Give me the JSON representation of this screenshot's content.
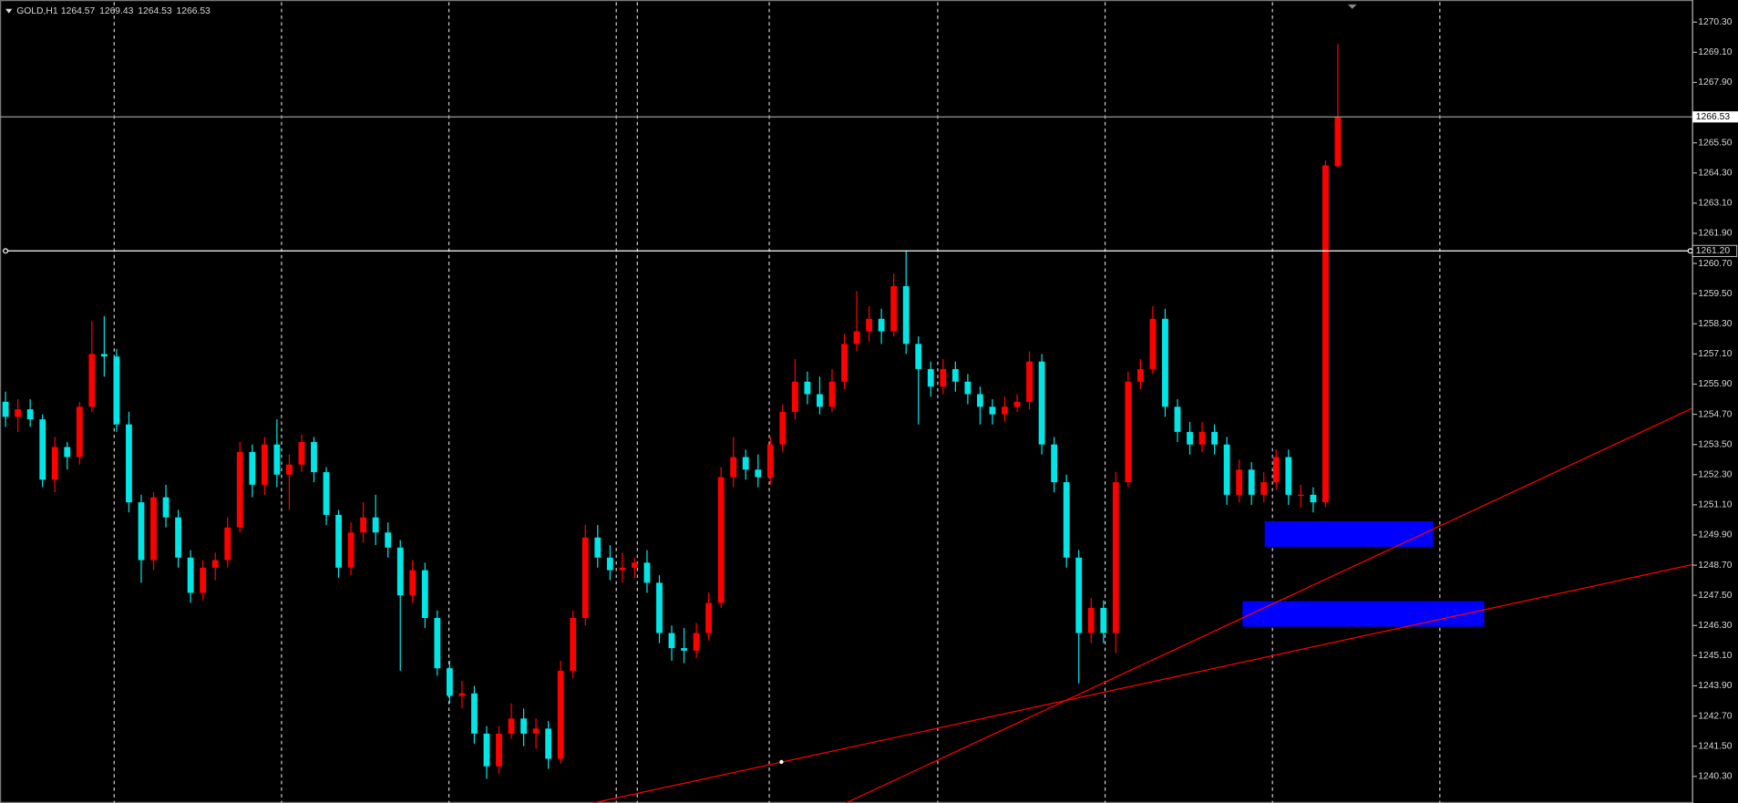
{
  "chart_data": {
    "type": "candlestick",
    "title": "GOLD,H1",
    "up_color": "#ff0000",
    "down_color": "#00e5e5",
    "ylim": [
      1239.24,
      1271.18
    ],
    "yticks": [
      {
        "value": 1270.3,
        "label": "1270.30"
      },
      {
        "value": 1269.1,
        "label": "1269.10"
      },
      {
        "value": 1267.9,
        "label": "1267.90"
      },
      {
        "value": 1265.5,
        "label": "1265.50"
      },
      {
        "value": 1264.3,
        "label": "1264.30"
      },
      {
        "value": 1263.1,
        "label": "1263.10"
      },
      {
        "value": 1261.9,
        "label": "1261.90"
      },
      {
        "value": 1260.7,
        "label": "1260.70"
      },
      {
        "value": 1259.5,
        "label": "1259.50"
      },
      {
        "value": 1258.3,
        "label": "1258.30"
      },
      {
        "value": 1257.1,
        "label": "1257.10"
      },
      {
        "value": 1255.9,
        "label": "1255.90"
      },
      {
        "value": 1254.7,
        "label": "1254.70"
      },
      {
        "value": 1253.5,
        "label": "1253.50"
      },
      {
        "value": 1252.3,
        "label": "1252.30"
      },
      {
        "value": 1251.1,
        "label": "1251.10"
      },
      {
        "value": 1249.9,
        "label": "1249.90"
      },
      {
        "value": 1248.7,
        "label": "1248.70"
      },
      {
        "value": 1247.5,
        "label": "1247.50"
      },
      {
        "value": 1246.3,
        "label": "1246.30"
      },
      {
        "value": 1245.1,
        "label": "1245.10"
      },
      {
        "value": 1243.9,
        "label": "1243.90"
      },
      {
        "value": 1242.7,
        "label": "1242.70"
      },
      {
        "value": 1241.5,
        "label": "1241.50"
      },
      {
        "value": 1240.3,
        "label": "1240.30"
      }
    ],
    "hline": {
      "value": 1261.2,
      "label": "1261.20"
    },
    "candles": [
      [
        1255.2,
        1255.6,
        1254.2,
        1254.6
      ],
      [
        1254.6,
        1255.3,
        1254.0,
        1254.9
      ],
      [
        1254.9,
        1255.3,
        1254.2,
        1254.5
      ],
      [
        1254.5,
        1254.7,
        1251.8,
        1252.1
      ],
      [
        1252.1,
        1253.8,
        1251.6,
        1253.4
      ],
      [
        1253.4,
        1253.6,
        1252.5,
        1253.0
      ],
      [
        1253.0,
        1255.2,
        1252.7,
        1255.0
      ],
      [
        1255.0,
        1258.4,
        1254.8,
        1257.1
      ],
      [
        1257.1,
        1258.6,
        1256.2,
        1257.0
      ],
      [
        1257.0,
        1257.3,
        1254.0,
        1254.3
      ],
      [
        1254.3,
        1254.8,
        1250.8,
        1251.2
      ],
      [
        1251.2,
        1251.5,
        1248.0,
        1248.9
      ],
      [
        1248.9,
        1251.6,
        1248.5,
        1251.4
      ],
      [
        1251.4,
        1251.9,
        1250.2,
        1250.6
      ],
      [
        1250.6,
        1250.9,
        1248.6,
        1249.0
      ],
      [
        1249.0,
        1249.3,
        1247.2,
        1247.6
      ],
      [
        1247.6,
        1248.9,
        1247.3,
        1248.6
      ],
      [
        1248.6,
        1249.2,
        1248.1,
        1248.9
      ],
      [
        1248.9,
        1250.6,
        1248.6,
        1250.2
      ],
      [
        1250.2,
        1253.6,
        1250.0,
        1253.2
      ],
      [
        1253.2,
        1253.5,
        1251.4,
        1251.9
      ],
      [
        1251.9,
        1253.8,
        1251.5,
        1253.5
      ],
      [
        1253.5,
        1254.5,
        1251.8,
        1252.3
      ],
      [
        1252.3,
        1253.1,
        1250.9,
        1252.7
      ],
      [
        1252.7,
        1253.9,
        1252.4,
        1253.6
      ],
      [
        1253.6,
        1253.8,
        1252.0,
        1252.4
      ],
      [
        1252.4,
        1252.6,
        1250.3,
        1250.7
      ],
      [
        1250.7,
        1250.9,
        1248.2,
        1248.6
      ],
      [
        1248.6,
        1250.4,
        1248.3,
        1250.0
      ],
      [
        1250.0,
        1251.2,
        1249.6,
        1250.6
      ],
      [
        1250.6,
        1251.5,
        1249.5,
        1250.0
      ],
      [
        1250.0,
        1250.4,
        1249.0,
        1249.4
      ],
      [
        1249.4,
        1249.7,
        1244.5,
        1247.5
      ],
      [
        1247.5,
        1248.9,
        1247.2,
        1248.5
      ],
      [
        1248.5,
        1248.8,
        1246.2,
        1246.6
      ],
      [
        1246.6,
        1246.9,
        1244.3,
        1244.6
      ],
      [
        1244.6,
        1244.9,
        1243.2,
        1243.5
      ],
      [
        1243.5,
        1244.1,
        1243.0,
        1243.6
      ],
      [
        1243.6,
        1243.9,
        1241.6,
        1242.0
      ],
      [
        1242.0,
        1242.3,
        1240.2,
        1240.7
      ],
      [
        1240.7,
        1242.3,
        1240.4,
        1242.0
      ],
      [
        1242.0,
        1243.2,
        1241.8,
        1242.6
      ],
      [
        1242.6,
        1243.0,
        1241.5,
        1242.0
      ],
      [
        1242.0,
        1242.6,
        1241.4,
        1242.2
      ],
      [
        1242.2,
        1242.5,
        1240.6,
        1241.0
      ],
      [
        1241.0,
        1244.9,
        1240.8,
        1244.5
      ],
      [
        1244.5,
        1246.9,
        1244.2,
        1246.6
      ],
      [
        1246.6,
        1250.3,
        1246.3,
        1249.8
      ],
      [
        1249.8,
        1250.3,
        1248.6,
        1249.0
      ],
      [
        1249.0,
        1249.5,
        1248.1,
        1248.5
      ],
      [
        1248.5,
        1249.2,
        1248.0,
        1248.6
      ],
      [
        1248.6,
        1249.0,
        1248.2,
        1248.8
      ],
      [
        1248.8,
        1249.3,
        1247.6,
        1248.0
      ],
      [
        1248.0,
        1248.3,
        1245.6,
        1246.0
      ],
      [
        1246.0,
        1246.3,
        1244.9,
        1245.4
      ],
      [
        1245.4,
        1246.2,
        1244.8,
        1245.3
      ],
      [
        1245.3,
        1246.4,
        1245.0,
        1246.0
      ],
      [
        1246.0,
        1247.6,
        1245.7,
        1247.2
      ],
      [
        1247.2,
        1252.6,
        1247.0,
        1252.2
      ],
      [
        1252.2,
        1253.8,
        1251.8,
        1253.0
      ],
      [
        1253.0,
        1253.3,
        1252.1,
        1252.5
      ],
      [
        1252.5,
        1253.1,
        1251.8,
        1252.2
      ],
      [
        1252.2,
        1253.8,
        1251.9,
        1253.5
      ],
      [
        1253.5,
        1255.1,
        1253.2,
        1254.8
      ],
      [
        1254.8,
        1256.9,
        1254.5,
        1256.0
      ],
      [
        1256.0,
        1256.4,
        1255.1,
        1255.5
      ],
      [
        1255.5,
        1256.2,
        1254.7,
        1255.0
      ],
      [
        1255.0,
        1256.5,
        1254.8,
        1256.0
      ],
      [
        1256.0,
        1257.9,
        1255.7,
        1257.5
      ],
      [
        1257.5,
        1259.6,
        1257.2,
        1258.0
      ],
      [
        1258.0,
        1259.0,
        1257.6,
        1258.5
      ],
      [
        1258.5,
        1258.9,
        1257.5,
        1258.0
      ],
      [
        1258.0,
        1260.3,
        1257.8,
        1259.8
      ],
      [
        1259.8,
        1261.2,
        1257.1,
        1257.5
      ],
      [
        1257.5,
        1257.8,
        1254.3,
        1256.5
      ],
      [
        1256.5,
        1256.8,
        1255.4,
        1255.8
      ],
      [
        1255.8,
        1256.9,
        1255.5,
        1256.5
      ],
      [
        1256.5,
        1256.8,
        1255.6,
        1256.0
      ],
      [
        1256.0,
        1256.3,
        1255.1,
        1255.5
      ],
      [
        1255.5,
        1255.8,
        1254.3,
        1255.0
      ],
      [
        1255.0,
        1255.3,
        1254.3,
        1254.7
      ],
      [
        1254.7,
        1255.4,
        1254.4,
        1255.0
      ],
      [
        1255.0,
        1255.5,
        1254.8,
        1255.2
      ],
      [
        1255.2,
        1257.2,
        1254.9,
        1256.8
      ],
      [
        1256.8,
        1257.1,
        1253.1,
        1253.5
      ],
      [
        1253.5,
        1253.8,
        1251.6,
        1252.0
      ],
      [
        1252.0,
        1252.3,
        1248.6,
        1249.0
      ],
      [
        1249.0,
        1249.3,
        1244.0,
        1246.0
      ],
      [
        1246.0,
        1247.4,
        1245.6,
        1247.0
      ],
      [
        1247.0,
        1247.3,
        1245.6,
        1246.0
      ],
      [
        1246.0,
        1252.4,
        1245.2,
        1252.0
      ],
      [
        1252.0,
        1256.4,
        1251.8,
        1256.0
      ],
      [
        1256.0,
        1256.9,
        1255.7,
        1256.5
      ],
      [
        1256.5,
        1259.0,
        1256.3,
        1258.5
      ],
      [
        1258.5,
        1258.9,
        1254.6,
        1255.0
      ],
      [
        1255.0,
        1255.3,
        1253.6,
        1254.0
      ],
      [
        1254.0,
        1254.4,
        1253.1,
        1253.5
      ],
      [
        1253.5,
        1254.4,
        1253.2,
        1254.0
      ],
      [
        1254.0,
        1254.3,
        1253.1,
        1253.5
      ],
      [
        1253.5,
        1253.8,
        1251.1,
        1251.5
      ],
      [
        1251.5,
        1252.9,
        1251.2,
        1252.5
      ],
      [
        1252.5,
        1252.8,
        1251.1,
        1251.5
      ],
      [
        1251.5,
        1252.4,
        1251.2,
        1252.0
      ],
      [
        1252.0,
        1253.3,
        1251.7,
        1253.0
      ],
      [
        1253.0,
        1253.3,
        1251.1,
        1251.5
      ],
      [
        1251.5,
        1251.9,
        1251.0,
        1251.5
      ],
      [
        1251.5,
        1251.8,
        1250.8,
        1251.2
      ],
      [
        1251.2,
        1264.8,
        1251.0,
        1264.6
      ],
      [
        1264.57,
        1269.43,
        1264.53,
        1266.53
      ]
    ]
  }
}
